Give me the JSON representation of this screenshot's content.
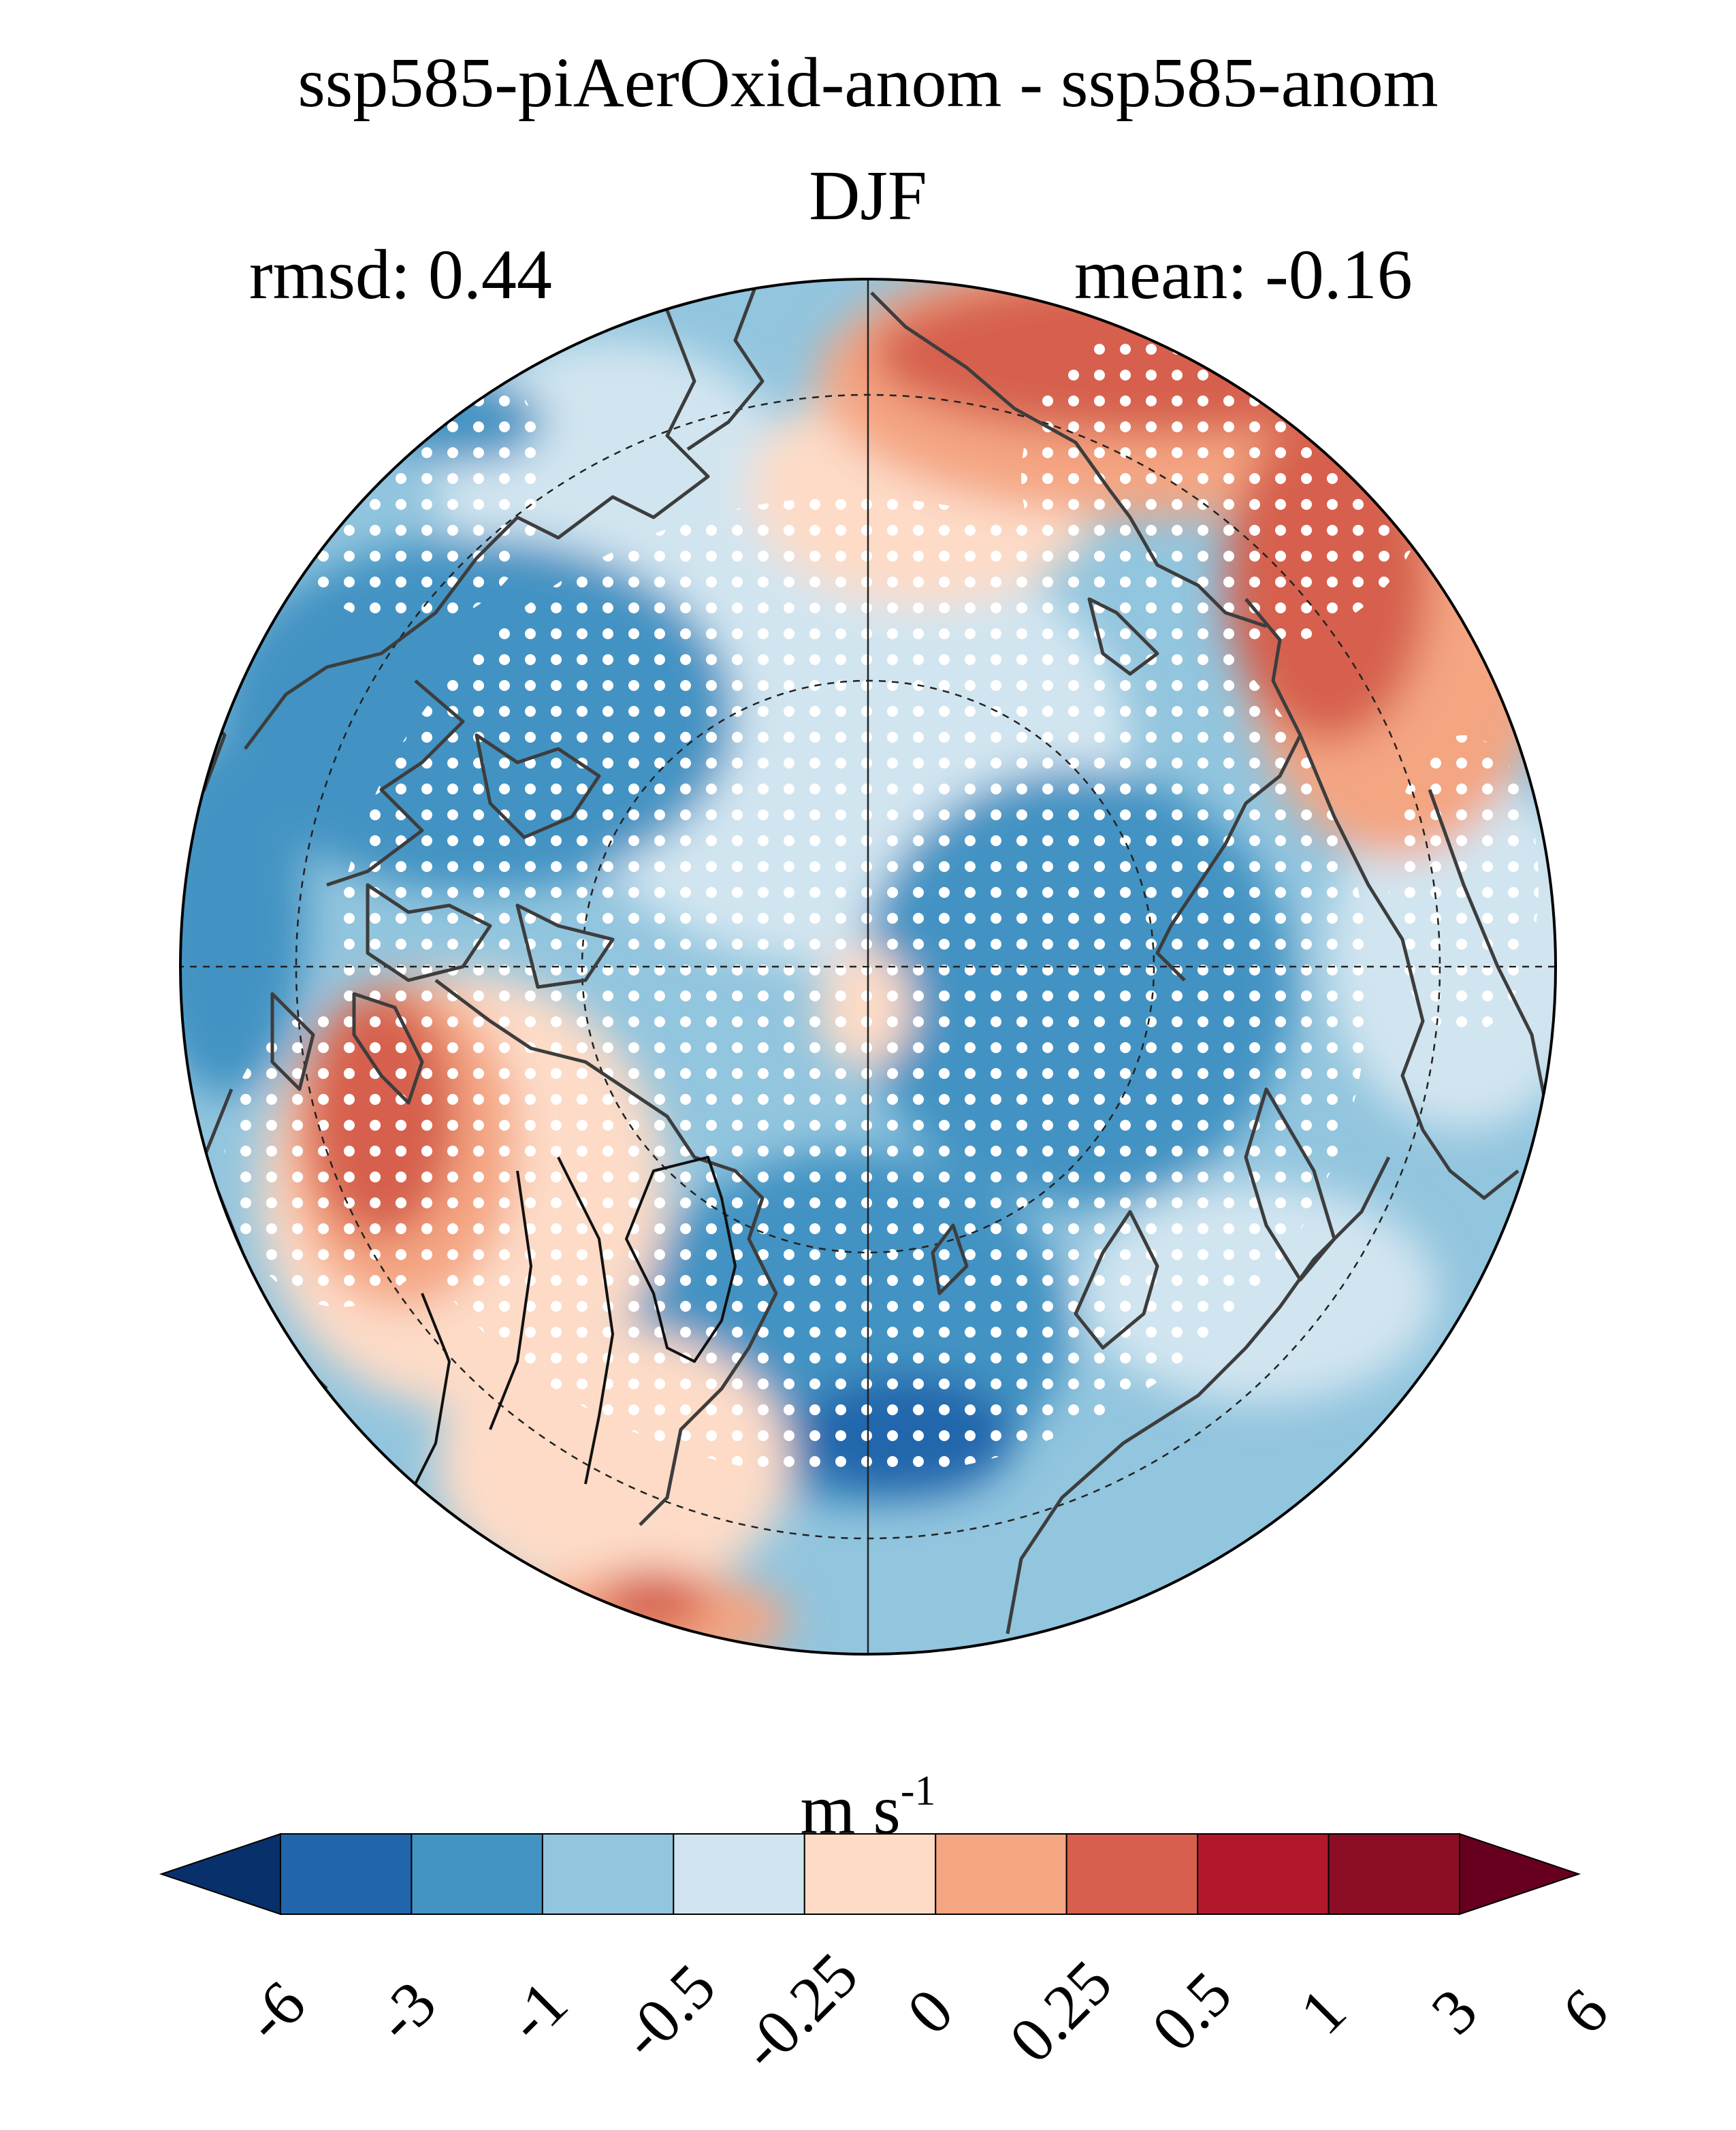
{
  "title": "ssp585-piAerOxid-anom - ssp585-anom",
  "season": "DJF",
  "stats": {
    "rmsd": "rmsd: 0.44",
    "mean": "mean: -0.16"
  },
  "map": {
    "projection": "north polar stereographic",
    "stippling": "white dots mark grid points",
    "contours": "black line contours over field",
    "graticule": "dashed"
  },
  "colorbar": {
    "units_base": "m s",
    "units_exp": "-1",
    "levels": [
      "-6",
      "-3",
      "-1",
      "-0.5",
      "-0.25",
      "0",
      "0.25",
      "0.5",
      "1",
      "3",
      "6"
    ],
    "colors": [
      "#08306b",
      "#2166ac",
      "#4393c3",
      "#92c5de",
      "#d1e5f0",
      "#fddbc7",
      "#f4a582",
      "#d6604d",
      "#b2182b",
      "#8b0e26",
      "#67001f"
    ],
    "extend": "both"
  }
}
